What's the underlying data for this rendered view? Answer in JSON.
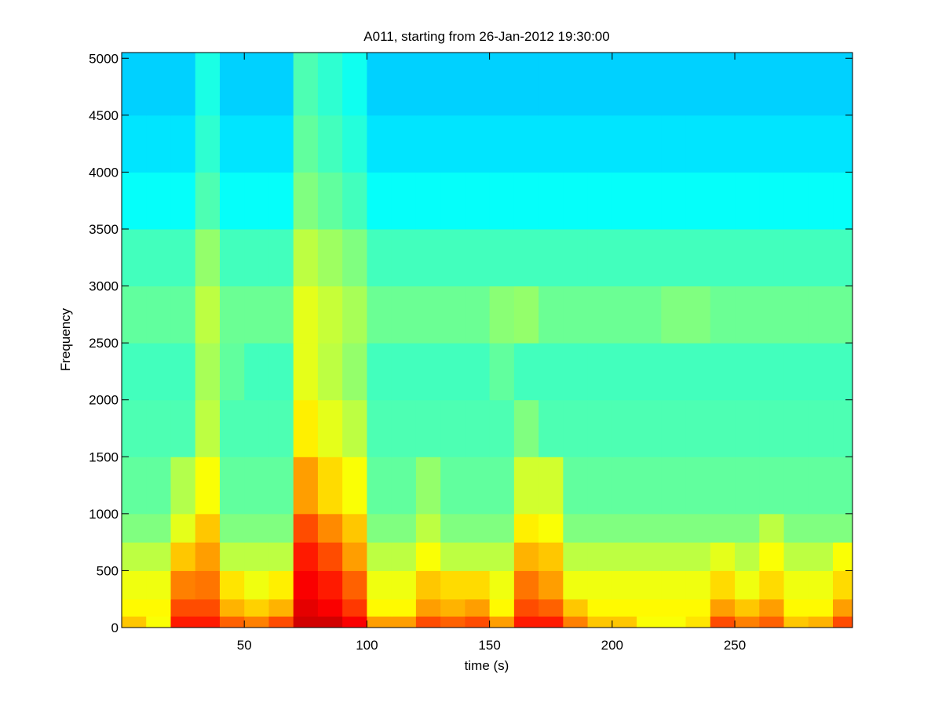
{
  "chart_data": {
    "type": "heatmap",
    "title": "A011, starting from 26-Jan-2012 19:30:00",
    "xlabel": "time (s)",
    "ylabel": "Frequency",
    "colormap": "jet",
    "xlim": [
      0,
      298
    ],
    "ylim": [
      0,
      5050
    ],
    "xticks": [
      50,
      100,
      150,
      200,
      250
    ],
    "yticks": [
      0,
      500,
      1000,
      1500,
      2000,
      2500,
      3000,
      3500,
      4000,
      4500,
      5000
    ],
    "xbins": [
      0,
      10,
      20,
      30,
      40,
      50,
      60,
      70,
      80,
      90,
      100,
      110,
      120,
      130,
      140,
      150,
      160,
      170,
      180,
      190,
      200,
      210,
      220,
      230,
      240,
      250,
      260,
      270,
      280,
      290,
      298
    ],
    "ybins": [
      0,
      100,
      250,
      500,
      750,
      1000,
      1500,
      2000,
      2500,
      3000,
      3500,
      4000,
      4500,
      5050
    ],
    "values": [
      [
        0.68,
        0.62,
        0.85,
        0.85,
        0.78,
        0.75,
        0.8,
        0.92,
        0.92,
        0.88,
        0.72,
        0.72,
        0.8,
        0.78,
        0.8,
        0.72,
        0.85,
        0.85,
        0.75,
        0.68,
        0.68,
        0.62,
        0.62,
        0.65,
        0.8,
        0.75,
        0.78,
        0.68,
        0.7,
        0.8
      ],
      [
        0.63,
        0.63,
        0.8,
        0.8,
        0.7,
        0.67,
        0.7,
        0.9,
        0.88,
        0.82,
        0.63,
        0.63,
        0.72,
        0.7,
        0.72,
        0.63,
        0.8,
        0.78,
        0.68,
        0.63,
        0.63,
        0.63,
        0.63,
        0.63,
        0.72,
        0.68,
        0.72,
        0.63,
        0.63,
        0.72
      ],
      [
        0.61,
        0.61,
        0.75,
        0.76,
        0.65,
        0.61,
        0.64,
        0.88,
        0.85,
        0.78,
        0.61,
        0.61,
        0.68,
        0.66,
        0.66,
        0.61,
        0.76,
        0.72,
        0.61,
        0.61,
        0.61,
        0.61,
        0.61,
        0.61,
        0.66,
        0.61,
        0.66,
        0.61,
        0.61,
        0.66
      ],
      [
        0.56,
        0.56,
        0.68,
        0.72,
        0.56,
        0.56,
        0.56,
        0.85,
        0.8,
        0.72,
        0.56,
        0.56,
        0.62,
        0.56,
        0.56,
        0.56,
        0.7,
        0.68,
        0.56,
        0.56,
        0.56,
        0.56,
        0.56,
        0.56,
        0.6,
        0.56,
        0.62,
        0.56,
        0.56,
        0.62
      ],
      [
        0.5,
        0.5,
        0.6,
        0.68,
        0.5,
        0.5,
        0.5,
        0.8,
        0.74,
        0.68,
        0.5,
        0.5,
        0.56,
        0.5,
        0.5,
        0.5,
        0.64,
        0.62,
        0.5,
        0.5,
        0.5,
        0.5,
        0.5,
        0.5,
        0.5,
        0.5,
        0.56,
        0.5,
        0.5,
        0.5
      ],
      [
        0.47,
        0.47,
        0.55,
        0.62,
        0.47,
        0.47,
        0.47,
        0.72,
        0.66,
        0.62,
        0.47,
        0.47,
        0.52,
        0.47,
        0.47,
        0.47,
        0.58,
        0.58,
        0.47,
        0.47,
        0.47,
        0.47,
        0.47,
        0.47,
        0.47,
        0.47,
        0.47,
        0.47,
        0.47,
        0.47
      ],
      [
        0.45,
        0.45,
        0.45,
        0.56,
        0.45,
        0.45,
        0.45,
        0.64,
        0.6,
        0.56,
        0.45,
        0.45,
        0.45,
        0.45,
        0.45,
        0.45,
        0.5,
        0.45,
        0.45,
        0.45,
        0.45,
        0.45,
        0.45,
        0.45,
        0.45,
        0.45,
        0.45,
        0.45,
        0.45,
        0.45
      ],
      [
        0.44,
        0.44,
        0.44,
        0.54,
        0.47,
        0.44,
        0.44,
        0.6,
        0.56,
        0.52,
        0.44,
        0.44,
        0.44,
        0.44,
        0.44,
        0.47,
        0.44,
        0.44,
        0.44,
        0.44,
        0.44,
        0.44,
        0.44,
        0.44,
        0.44,
        0.44,
        0.44,
        0.44,
        0.44,
        0.44
      ],
      [
        0.47,
        0.47,
        0.47,
        0.56,
        0.48,
        0.48,
        0.48,
        0.6,
        0.57,
        0.54,
        0.48,
        0.48,
        0.48,
        0.48,
        0.48,
        0.51,
        0.52,
        0.48,
        0.48,
        0.48,
        0.48,
        0.48,
        0.5,
        0.5,
        0.48,
        0.48,
        0.48,
        0.48,
        0.48,
        0.48
      ],
      [
        0.44,
        0.44,
        0.44,
        0.52,
        0.44,
        0.44,
        0.44,
        0.56,
        0.53,
        0.5,
        0.44,
        0.44,
        0.44,
        0.44,
        0.44,
        0.44,
        0.44,
        0.44,
        0.44,
        0.44,
        0.44,
        0.44,
        0.44,
        0.44,
        0.44,
        0.44,
        0.44,
        0.44,
        0.44,
        0.44
      ],
      [
        0.38,
        0.38,
        0.38,
        0.45,
        0.38,
        0.38,
        0.38,
        0.5,
        0.47,
        0.44,
        0.38,
        0.38,
        0.38,
        0.38,
        0.38,
        0.38,
        0.38,
        0.38,
        0.38,
        0.38,
        0.38,
        0.38,
        0.38,
        0.38,
        0.38,
        0.38,
        0.38,
        0.38,
        0.38,
        0.38
      ],
      [
        0.35,
        0.35,
        0.35,
        0.42,
        0.35,
        0.35,
        0.35,
        0.47,
        0.44,
        0.41,
        0.35,
        0.35,
        0.35,
        0.35,
        0.35,
        0.35,
        0.35,
        0.35,
        0.35,
        0.35,
        0.35,
        0.35,
        0.35,
        0.35,
        0.35,
        0.35,
        0.35,
        0.35,
        0.35,
        0.35
      ],
      [
        0.33,
        0.33,
        0.33,
        0.4,
        0.33,
        0.33,
        0.33,
        0.45,
        0.42,
        0.39,
        0.33,
        0.33,
        0.33,
        0.33,
        0.33,
        0.33,
        0.33,
        0.33,
        0.33,
        0.33,
        0.33,
        0.33,
        0.33,
        0.33,
        0.33,
        0.33,
        0.33,
        0.33,
        0.33,
        0.33
      ]
    ]
  }
}
